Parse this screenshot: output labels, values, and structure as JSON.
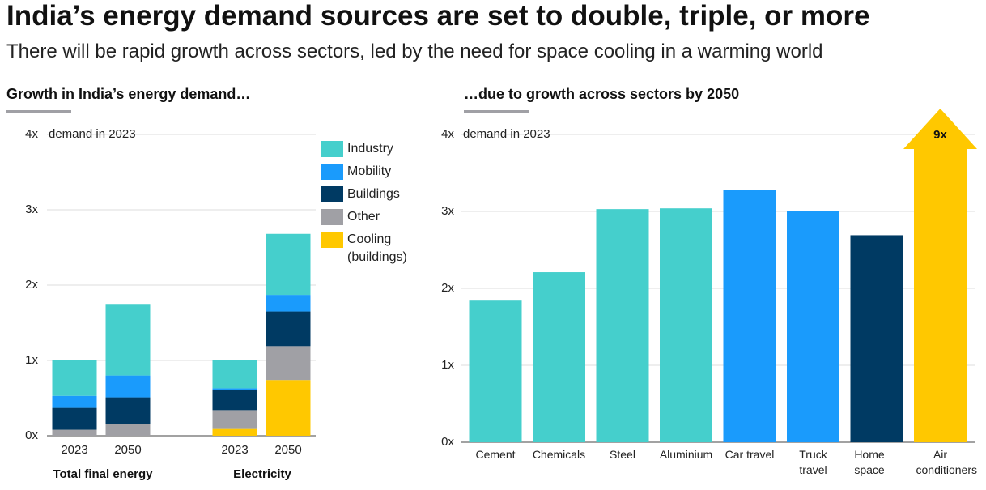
{
  "title": "India’s energy demand sources are set to double, triple, or more",
  "subtitle": "There will be rapid growth across sectors, led by the need for space cooling in a warming world",
  "chart_data": [
    {
      "type": "stacked_bar",
      "title": "Growth in India’s energy demand…",
      "annotation": "demand in 2023",
      "categories": [
        "2023",
        "2050",
        "2023",
        "2050"
      ],
      "groups": [
        "Total final energy",
        "Electricity"
      ],
      "series": [
        {
          "name": "Industry",
          "color": "#45cfcc",
          "values": [
            0.47,
            0.95,
            0.37,
            0.81
          ]
        },
        {
          "name": "Mobility",
          "color": "#1a9bfc",
          "values": [
            0.16,
            0.29,
            0.02,
            0.22
          ]
        },
        {
          "name": "Buildings",
          "color": "#003a63",
          "values": [
            0.29,
            0.35,
            0.27,
            0.46
          ]
        },
        {
          "name": "Other",
          "color": "#a0a0a5",
          "values": [
            0.08,
            0.16,
            0.25,
            0.45
          ]
        },
        {
          "name": "Cooling (buildings)",
          "color": "#ffc800",
          "values": [
            0,
            0,
            0.09,
            0.74
          ]
        }
      ],
      "ylim": [
        0,
        4
      ],
      "yticks": [
        {
          "value": 0,
          "label": "0x"
        },
        {
          "value": 1,
          "label": "1x"
        },
        {
          "value": 2,
          "label": "2x"
        },
        {
          "value": 3,
          "label": "3x"
        },
        {
          "value": 4,
          "label": "4x"
        }
      ],
      "grid": true
    },
    {
      "type": "bar",
      "title": "…due to growth across sectors by 2050",
      "annotation": "demand in 2023",
      "categories": [
        "Cement",
        "Chemicals",
        "Steel",
        "Aluminium",
        "Car travel",
        "Truck travel",
        "Home space",
        "Air conditioners"
      ],
      "values": [
        1.84,
        2.21,
        3.03,
        3.04,
        3.28,
        3.0,
        2.69,
        9
      ],
      "value_labels": [
        null,
        null,
        null,
        null,
        null,
        null,
        null,
        "9x"
      ],
      "colors": [
        "#45cfcc",
        "#45cfcc",
        "#45cfcc",
        "#45cfcc",
        "#1a9bfc",
        "#1a9bfc",
        "#003a63",
        "#ffc800"
      ],
      "ylim": [
        0,
        4
      ],
      "yticks": [
        {
          "value": 0,
          "label": "0x"
        },
        {
          "value": 1,
          "label": "1x"
        },
        {
          "value": 2,
          "label": "2x"
        },
        {
          "value": 3,
          "label": "3x"
        },
        {
          "value": 4,
          "label": "4x"
        }
      ],
      "grid": true
    }
  ]
}
